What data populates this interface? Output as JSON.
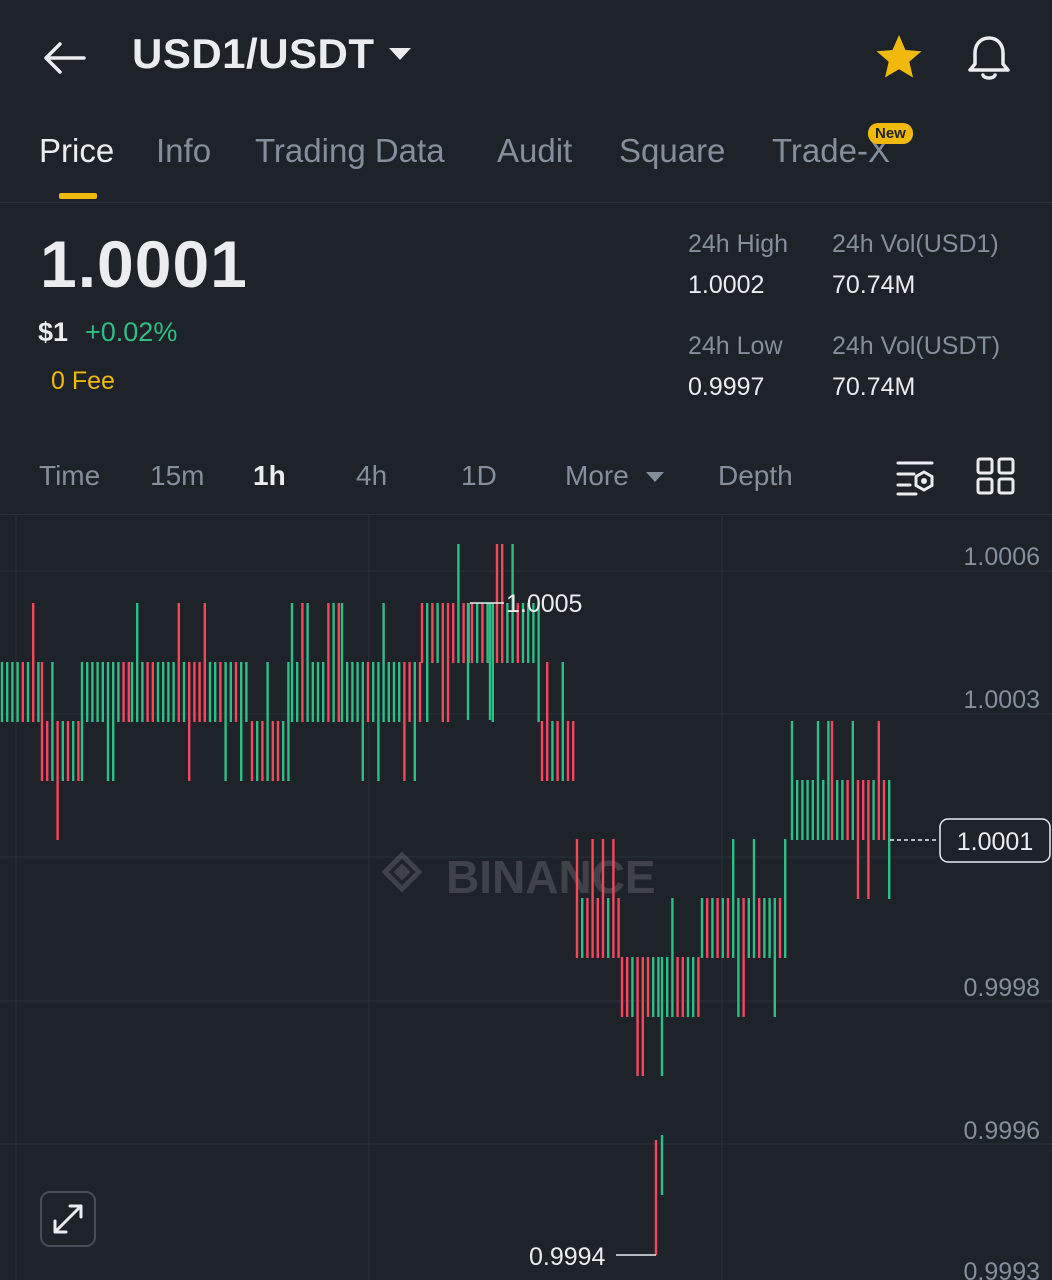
{
  "header": {
    "pair": "USD1/USDT",
    "back_icon": "arrow-left-icon",
    "favorite_icon": "star-icon",
    "favorite_color": "#f0b90b",
    "alert_icon": "bell-icon"
  },
  "tabs": [
    {
      "label": "Price",
      "active": true
    },
    {
      "label": "Info"
    },
    {
      "label": "Trading Data"
    },
    {
      "label": "Audit"
    },
    {
      "label": "Square"
    },
    {
      "label": "Trade-X",
      "badge": "New"
    }
  ],
  "price": {
    "last": "1.0001",
    "usd": "$1",
    "change": "+0.02%",
    "fee": "0 Fee"
  },
  "stats": {
    "high_label": "24h High",
    "high": "1.0002",
    "vol_base_label": "24h Vol(USD1)",
    "vol_base": "70.74M",
    "low_label": "24h Low",
    "low": "0.9997",
    "vol_quote_label": "24h Vol(USDT)",
    "vol_quote": "70.74M"
  },
  "intervals": {
    "items": [
      "Time",
      "15m",
      "1h",
      "4h",
      "1D",
      "More",
      "Depth"
    ],
    "active": "1h",
    "settings_icon": "chart-settings-icon",
    "layout_icon": "grid-icon"
  },
  "chart_data": {
    "type": "candlestick",
    "watermark": "BINANCE",
    "y_ticks": [
      "1.0006",
      "1.0003",
      "0.9998",
      "0.9996",
      "0.9993"
    ],
    "last_price_label": "1.0001",
    "max_label": "1.0005",
    "min_label": "0.9994",
    "colors": {
      "up": "#2ebd85",
      "down": "#f6465d",
      "background": "#1e2329",
      "grid": "#2b3139"
    },
    "expand_icon": "expand-icon"
  }
}
